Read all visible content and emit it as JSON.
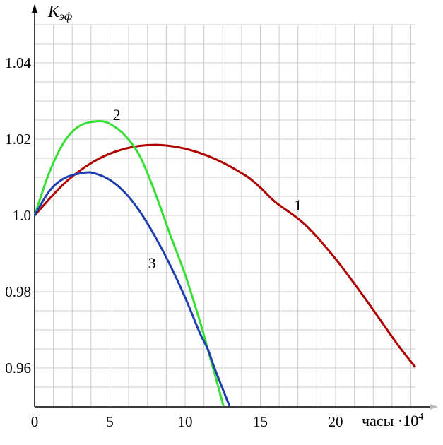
{
  "chart_data": {
    "type": "line",
    "title": "",
    "ylabel": "Kэф",
    "ylabel_main": "K",
    "ylabel_sub": "эф",
    "xlabel": "часы ·10",
    "xlabel_exp": "4",
    "xlim": [
      0,
      25.3
    ],
    "ylim": [
      0.95,
      1.053
    ],
    "grid": true,
    "grid_step_x": 1.25,
    "grid_step_y": 0.005,
    "x_ticks": [
      0,
      5,
      10,
      15,
      20
    ],
    "x_tick_labels": [
      "0",
      "5",
      "10",
      "15",
      "20"
    ],
    "y_ticks": [
      0.96,
      0.98,
      1.0,
      1.02,
      1.04
    ],
    "y_tick_labels": [
      "0.96",
      "0.98",
      "1.0",
      "1.02",
      "1.04"
    ],
    "series": [
      {
        "name": "1",
        "color": "#b00000",
        "label_at": [
          17.5,
          1.0028
        ],
        "x": [
          0,
          2,
          4,
          6,
          8,
          10,
          12,
          14,
          15,
          16,
          18,
          20,
          22,
          24,
          25.3
        ],
        "y": [
          1.0,
          1.0085,
          1.0143,
          1.0175,
          1.0185,
          1.0175,
          1.0148,
          1.0105,
          1.0073,
          1.0035,
          0.9975,
          0.9886,
          0.978,
          0.9668,
          0.9602
        ]
      },
      {
        "name": "2",
        "color": "#33e033",
        "label_at": [
          5.45,
          1.0265
        ],
        "x": [
          0,
          1,
          2,
          3,
          4.2,
          5,
          6,
          7,
          8,
          9,
          10,
          11,
          11.5,
          12,
          12.55
        ],
        "y": [
          1.0,
          1.0115,
          1.0195,
          1.0235,
          1.0247,
          1.024,
          1.021,
          1.0155,
          1.006,
          0.995,
          0.9845,
          0.972,
          0.965,
          0.958,
          0.95
        ]
      },
      {
        "name": "3",
        "color": "#1f3fb0",
        "label_at": [
          7.8,
          0.9876
        ],
        "x": [
          0,
          1,
          2,
          3.3,
          4,
          5,
          6,
          7,
          8,
          9,
          10,
          11,
          11.5,
          12,
          12.95
        ],
        "y": [
          1.0,
          1.0065,
          1.0098,
          1.0112,
          1.011,
          1.0093,
          1.006,
          1.001,
          0.9945,
          0.987,
          0.9785,
          0.969,
          0.965,
          0.9595,
          0.95
        ]
      }
    ]
  }
}
